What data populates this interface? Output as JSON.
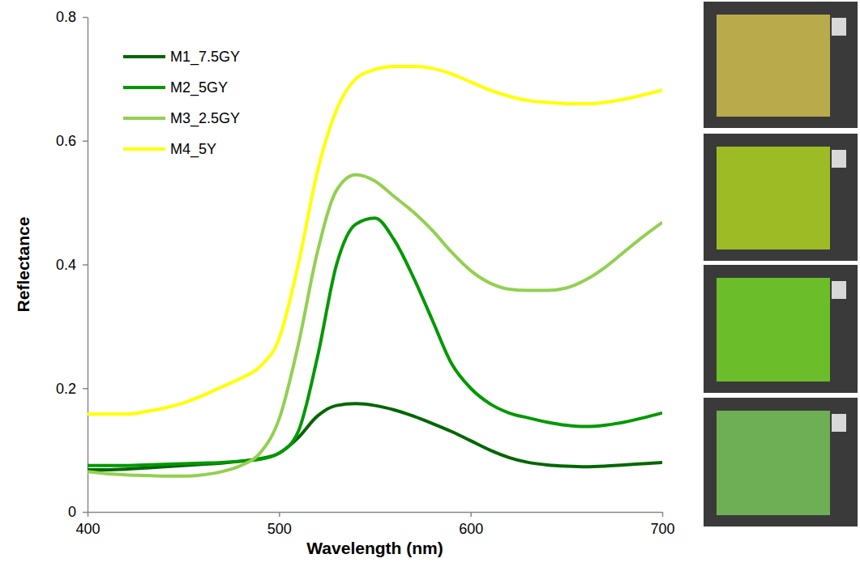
{
  "chart_data": {
    "type": "line",
    "x_label": "Wavelength (nm)",
    "y_label": "Reflectance",
    "x": [
      400,
      410,
      420,
      430,
      440,
      450,
      460,
      470,
      480,
      490,
      500,
      510,
      520,
      530,
      540,
      550,
      560,
      570,
      580,
      590,
      600,
      610,
      620,
      630,
      640,
      650,
      660,
      670,
      680,
      690,
      700
    ],
    "xlim": [
      400,
      700
    ],
    "xticks": [
      400,
      500,
      600,
      700
    ],
    "ylim": [
      0,
      0.8
    ],
    "yticks": [
      0,
      0.2,
      0.4,
      0.6,
      0.8
    ],
    "grid": false,
    "legend": "upper left",
    "series": [
      {
        "name": "M1_7.5GY",
        "color": "#006600",
        "values": [
          0.068,
          0.068,
          0.069,
          0.071,
          0.073,
          0.075,
          0.077,
          0.079,
          0.082,
          0.086,
          0.095,
          0.12,
          0.155,
          0.172,
          0.175,
          0.172,
          0.165,
          0.155,
          0.143,
          0.13,
          0.115,
          0.1,
          0.088,
          0.08,
          0.076,
          0.074,
          0.073,
          0.074,
          0.076,
          0.078,
          0.08
        ]
      },
      {
        "name": "M2_5GY",
        "color": "#009900",
        "values": [
          0.075,
          0.075,
          0.075,
          0.076,
          0.077,
          0.078,
          0.079,
          0.08,
          0.082,
          0.085,
          0.095,
          0.13,
          0.25,
          0.4,
          0.465,
          0.475,
          0.44,
          0.38,
          0.31,
          0.24,
          0.2,
          0.175,
          0.16,
          0.152,
          0.145,
          0.14,
          0.138,
          0.14,
          0.145,
          0.152,
          0.16
        ]
      },
      {
        "name": "M3_2.5GY",
        "color": "#92d050",
        "values": [
          0.065,
          0.062,
          0.06,
          0.059,
          0.058,
          0.058,
          0.06,
          0.065,
          0.075,
          0.095,
          0.15,
          0.27,
          0.42,
          0.52,
          0.545,
          0.535,
          0.51,
          0.485,
          0.455,
          0.42,
          0.39,
          0.37,
          0.36,
          0.358,
          0.358,
          0.362,
          0.375,
          0.395,
          0.42,
          0.445,
          0.468
        ]
      },
      {
        "name": "M4_5Y",
        "color": "#ffff00",
        "values": [
          0.158,
          0.158,
          0.158,
          0.162,
          0.168,
          0.176,
          0.188,
          0.202,
          0.216,
          0.235,
          0.28,
          0.4,
          0.55,
          0.65,
          0.7,
          0.715,
          0.72,
          0.72,
          0.717,
          0.708,
          0.695,
          0.682,
          0.672,
          0.665,
          0.662,
          0.66,
          0.66,
          0.662,
          0.667,
          0.674,
          0.682
        ]
      }
    ]
  }
}
